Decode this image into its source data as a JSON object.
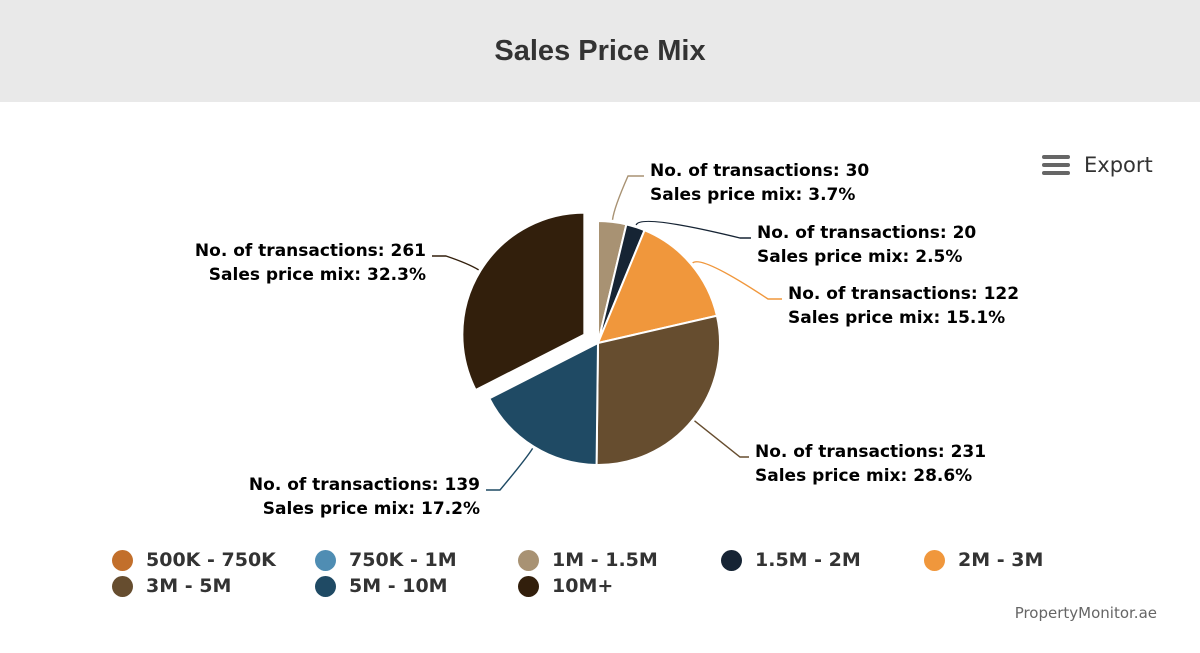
{
  "title": "Sales Price Mix",
  "export_label": "Export",
  "credit": "PropertyMonitor.ae",
  "chart_data": {
    "type": "pie",
    "title": "Sales Price Mix",
    "label_prefix_count": "No. of transactions: ",
    "label_prefix_share": "Sales price mix: ",
    "legend_position": "bottom",
    "slices": [
      {
        "name": "500K - 750K",
        "transactions": 0,
        "share": 0,
        "color": "#c26f2b",
        "label": false,
        "sliced": false
      },
      {
        "name": "750K - 1M",
        "transactions": 0,
        "share": 0,
        "color": "#4f8db3",
        "label": false,
        "sliced": false
      },
      {
        "name": "1M - 1.5M",
        "transactions": 30,
        "share": 3.7,
        "color": "#a89273",
        "label": true,
        "sliced": false
      },
      {
        "name": "1.5M - 2M",
        "transactions": 20,
        "share": 2.5,
        "color": "#162434",
        "label": true,
        "sliced": false
      },
      {
        "name": "2M - 3M",
        "transactions": 122,
        "share": 15.1,
        "color": "#f0973c",
        "label": true,
        "sliced": false
      },
      {
        "name": "3M - 5M",
        "transactions": 231,
        "share": 28.6,
        "color": "#664d2f",
        "label": true,
        "sliced": false
      },
      {
        "name": "5M - 10M",
        "transactions": 139,
        "share": 17.2,
        "color": "#1f4a64",
        "label": true,
        "sliced": false
      },
      {
        "name": "10M+",
        "transactions": 261,
        "share": 32.3,
        "color": "#321f0c",
        "label": true,
        "sliced": true
      }
    ]
  }
}
